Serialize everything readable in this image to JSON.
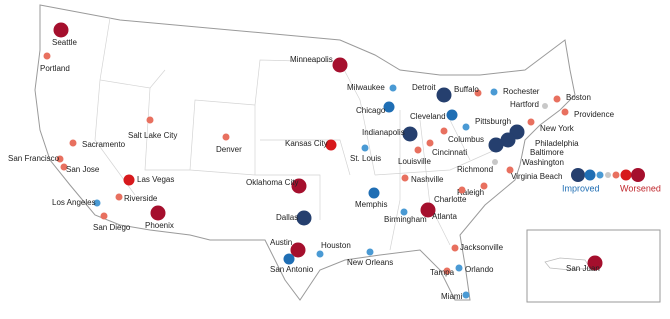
{
  "cities": [
    {
      "name": "Seattle",
      "color": "#a50f2d"
    },
    {
      "name": "Portland",
      "color": "#e8705f"
    },
    {
      "name": "Minneapolis",
      "color": "#a50f2d"
    },
    {
      "name": "Milwaukee",
      "color": "#4a9ad4"
    },
    {
      "name": "Detroit",
      "color": "#253f6e"
    },
    {
      "name": "Buffalo",
      "color": "#e8705f"
    },
    {
      "name": "Rochester",
      "color": "#4a9ad4"
    },
    {
      "name": "Boston",
      "color": "#e8705f"
    },
    {
      "name": "Hartford",
      "color": "#c8c8c8"
    },
    {
      "name": "Providence",
      "color": "#e8705f"
    },
    {
      "name": "New York",
      "color": "#e8705f"
    },
    {
      "name": "Chicago",
      "color": "#1f6eb4"
    },
    {
      "name": "Cleveland",
      "color": "#1f6eb4"
    },
    {
      "name": "Pittsburgh",
      "color": "#4a9ad4"
    },
    {
      "name": "Indianapolis",
      "color": "#253f6e"
    },
    {
      "name": "Columbus",
      "color": "#e8705f"
    },
    {
      "name": "Philadelphia",
      "color": "#253f6e"
    },
    {
      "name": "Baltimore",
      "color": "#253f6e"
    },
    {
      "name": "Washington",
      "color": "#253f6e"
    },
    {
      "name": "Kansas City",
      "color": "#d7191c"
    },
    {
      "name": "Denver",
      "color": "#e8705f"
    },
    {
      "name": "Salt Lake City",
      "color": "#e8705f"
    },
    {
      "name": "Sacramento",
      "color": "#e8705f"
    },
    {
      "name": "San Francisco",
      "color": "#e8705f"
    },
    {
      "name": "San Jose",
      "color": "#e8705f"
    },
    {
      "name": "St. Louis",
      "color": "#4a9ad4"
    },
    {
      "name": "Cincinnati",
      "color": "#e8705f"
    },
    {
      "name": "Louisville",
      "color": "#e8705f"
    },
    {
      "name": "Richmond",
      "color": "#c8c8c8"
    },
    {
      "name": "Virginia Beach",
      "color": "#e8705f"
    },
    {
      "name": "Nashville",
      "color": "#e8705f"
    },
    {
      "name": "Raleigh",
      "color": "#e8705f"
    },
    {
      "name": "Charlotte",
      "color": "#e8705f"
    },
    {
      "name": "Las Vegas",
      "color": "#d7191c"
    },
    {
      "name": "Riverside",
      "color": "#e8705f"
    },
    {
      "name": "Los Angeles",
      "color": "#4a9ad4"
    },
    {
      "name": "San Diego",
      "color": "#e8705f"
    },
    {
      "name": "Phoenix",
      "color": "#a50f2d"
    },
    {
      "name": "Oklahoma City",
      "color": "#a50f2d"
    },
    {
      "name": "Memphis",
      "color": "#1f6eb4"
    },
    {
      "name": "Dallas",
      "color": "#253f6e"
    },
    {
      "name": "Atlanta",
      "color": "#a50f2d"
    },
    {
      "name": "Birmingham",
      "color": "#4a9ad4"
    },
    {
      "name": "Austin",
      "color": "#a50f2d"
    },
    {
      "name": "Houston",
      "color": "#4a9ad4"
    },
    {
      "name": "San Antonio",
      "color": "#1f6eb4"
    },
    {
      "name": "New Orleans",
      "color": "#4a9ad4"
    },
    {
      "name": "Jacksonville",
      "color": "#e8705f"
    },
    {
      "name": "Tampa",
      "color": "#e8705f"
    },
    {
      "name": "Orlando",
      "color": "#4a9ad4"
    },
    {
      "name": "Miami",
      "color": "#4a9ad4"
    },
    {
      "name": "San Juan",
      "color": "#a50f2d"
    }
  ],
  "legend": {
    "improved": "Improved",
    "worsened": "Worsened"
  }
}
